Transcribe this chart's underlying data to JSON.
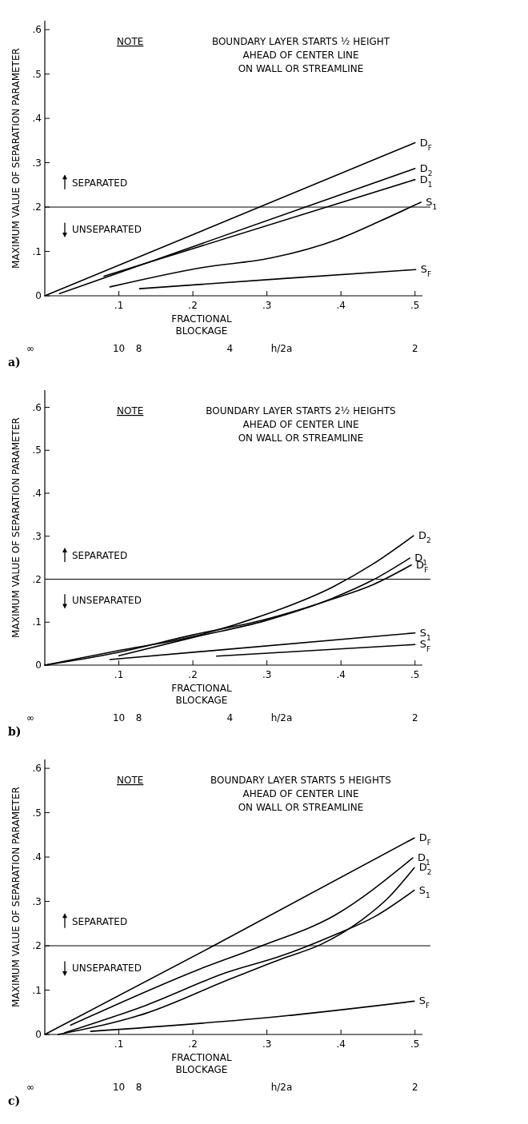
{
  "chart_data": [
    {
      "type": "line",
      "xlabel": "FRACTIONAL\nBLOCKAGE",
      "ylabel": "MAXIMUM VALUE OF SEPARATION PARAMETER",
      "x2label": "h/2a",
      "xlim": [
        0,
        0.51
      ],
      "ylim": [
        0,
        0.62
      ],
      "xticks": [
        {
          "value": 0.1,
          "label": ".1"
        },
        {
          "value": 0.2,
          "label": ".2"
        },
        {
          "value": 0.3,
          "label": ".3"
        },
        {
          "value": 0.4,
          "label": ".4"
        },
        {
          "value": 0.5,
          "label": ".5"
        }
      ],
      "yticks": [
        {
          "value": 0,
          "label": "0"
        },
        {
          "value": 0.1,
          "label": ".1"
        },
        {
          "value": 0.2,
          "label": ".2"
        },
        {
          "value": 0.3,
          "label": ".3"
        },
        {
          "value": 0.4,
          "label": ".4"
        },
        {
          "value": 0.5,
          "label": ".5"
        },
        {
          "value": 0.6,
          "label": ".6"
        }
      ],
      "grid": false,
      "marker": "none",
      "line_style": "solid",
      "ref_lines": [
        {
          "axis": "y",
          "value": 0.2
        }
      ],
      "annotations": [
        "NOTE",
        "BOUNDARY LAYER STARTS ½ HEIGHT\nAHEAD OF CENTER LINE\nON WALL OR STREAMLINE",
        "SEPARATED",
        "UNSEPARATED",
        "a)",
        "∞",
        "10",
        "8",
        "4",
        "2"
      ],
      "series": [
        {
          "name": "D$_{F}$",
          "color": "#000000",
          "x": [
            0,
            0.5
          ],
          "values": [
            0,
            0.345
          ]
        },
        {
          "name": "D$_{2}$",
          "color": "#000000",
          "x": [
            0.02,
            0.5
          ],
          "values": [
            0.005,
            0.287
          ]
        },
        {
          "name": "D$_{1}$",
          "color": "#000000",
          "x": [
            0.08,
            0.5
          ],
          "values": [
            0.044,
            0.262
          ]
        },
        {
          "name": "S$_{1}$",
          "color": "#000000",
          "x": [
            0.088,
            0.214,
            0.305,
            0.397,
            0.451,
            0.508
          ],
          "values": [
            0.02,
            0.064,
            0.085,
            0.128,
            0.167,
            0.211
          ]
        },
        {
          "name": "S$_{F}$",
          "color": "#000000",
          "x": [
            0.128,
            0.323,
            0.501
          ],
          "values": [
            0.016,
            0.039,
            0.059
          ]
        }
      ]
    },
    {
      "type": "line",
      "xlabel": "FRACTIONAL\nBLOCKAGE",
      "ylabel": "MAXIMUM VALUE OF SEPARATION PARAMETER",
      "x2label": "h/2a",
      "xlim": [
        0,
        0.51
      ],
      "ylim": [
        0,
        0.64
      ],
      "xticks": [
        {
          "value": 0.1,
          "label": ".1"
        },
        {
          "value": 0.2,
          "label": ".2"
        },
        {
          "value": 0.3,
          "label": ".3"
        },
        {
          "value": 0.4,
          "label": ".4"
        },
        {
          "value": 0.5,
          "label": ".5"
        }
      ],
      "yticks": [
        {
          "value": 0,
          "label": "0"
        },
        {
          "value": 0.1,
          "label": ".1"
        },
        {
          "value": 0.2,
          "label": ".2"
        },
        {
          "value": 0.3,
          "label": ".3"
        },
        {
          "value": 0.4,
          "label": ".4"
        },
        {
          "value": 0.5,
          "label": ".5"
        },
        {
          "value": 0.6,
          "label": ".6"
        }
      ],
      "grid": false,
      "marker": "none",
      "line_style": "solid",
      "ref_lines": [
        {
          "axis": "y",
          "value": 0.2
        }
      ],
      "annotations": [
        "NOTE",
        "BOUNDARY LAYER STARTS 2½ HEIGHTS\nAHEAD OF CENTER LINE\nON WALL OR STREAMLINE",
        "SEPARATED",
        "UNSEPARATED",
        "b)",
        "∞",
        "10",
        "8",
        "4",
        "2"
      ],
      "series": [
        {
          "name": "D$_{2}$",
          "color": "#000000",
          "x": [
            0,
            0.097,
            0.199,
            0.297,
            0.389,
            0.443,
            0.498
          ],
          "values": [
            0,
            0.033,
            0.066,
            0.117,
            0.182,
            0.235,
            0.301
          ]
        },
        {
          "name": "D$_{1}$",
          "color": "#000000",
          "x": [
            0.1,
            0.199,
            0.297,
            0.389,
            0.443,
            0.493
          ],
          "values": [
            0.022,
            0.064,
            0.103,
            0.156,
            0.198,
            0.249
          ]
        },
        {
          "name": "D$_{F}$",
          "color": "#000000",
          "x": [
            0,
            0.097,
            0.199,
            0.297,
            0.389,
            0.443,
            0.495
          ],
          "values": [
            0,
            0.029,
            0.07,
            0.106,
            0.154,
            0.187,
            0.233
          ]
        },
        {
          "name": "S$_{1}$",
          "color": "#000000",
          "x": [
            0.088,
            0.5
          ],
          "values": [
            0.013,
            0.075
          ]
        },
        {
          "name": "S$_{F}$",
          "color": "#000000",
          "x": [
            0.232,
            0.5
          ],
          "values": [
            0.021,
            0.048
          ]
        }
      ]
    },
    {
      "type": "line",
      "xlabel": "FRACTIONAL\nBLOCKAGE",
      "ylabel": "MAXIMUM VALUE OF SEPARATION PARAMETER",
      "x2label": "h/2a",
      "xlim": [
        0,
        0.51
      ],
      "ylim": [
        0,
        0.62
      ],
      "xticks": [
        {
          "value": 0.1,
          "label": ".1"
        },
        {
          "value": 0.2,
          "label": ".2"
        },
        {
          "value": 0.3,
          "label": ".3"
        },
        {
          "value": 0.4,
          "label": ".4"
        },
        {
          "value": 0.5,
          "label": ".5"
        }
      ],
      "yticks": [
        {
          "value": 0,
          "label": "0"
        },
        {
          "value": 0.1,
          "label": ".1"
        },
        {
          "value": 0.2,
          "label": ".2"
        },
        {
          "value": 0.3,
          "label": ".3"
        },
        {
          "value": 0.4,
          "label": ".4"
        },
        {
          "value": 0.5,
          "label": ".5"
        },
        {
          "value": 0.6,
          "label": ".6"
        }
      ],
      "grid": false,
      "marker": "none",
      "line_style": "solid",
      "ref_lines": [
        {
          "axis": "y",
          "value": 0.2
        }
      ],
      "annotations": [
        "NOTE",
        "BOUNDARY LAYER STARTS 5 HEIGHTS\nAHEAD OF CENTER LINE\nON WALL OR STREAMLINE",
        "SEPARATED",
        "UNSEPARATED",
        "c)",
        "∞",
        "10",
        "8",
        "2"
      ],
      "series": [
        {
          "name": "D$_{F}$",
          "color": "#000000",
          "x": [
            0,
            0.228,
            0.499
          ],
          "values": [
            0,
            0.2,
            0.443
          ]
        },
        {
          "name": "D$_{1}$",
          "color": "#000000",
          "x": [
            0.035,
            0.21,
            0.29,
            0.392,
            0.497
          ],
          "values": [
            0.021,
            0.148,
            0.198,
            0.269,
            0.398
          ]
        },
        {
          "name": "D$_{2}$",
          "color": "#000000",
          "x": [
            0.018,
            0.137,
            0.246,
            0.319,
            0.373,
            0.428,
            0.465,
            0.499
          ],
          "values": [
            0,
            0.048,
            0.122,
            0.17,
            0.203,
            0.258,
            0.31,
            0.376
          ]
        },
        {
          "name": "S$_{1}$",
          "color": "#000000",
          "x": [
            0.027,
            0.137,
            0.246,
            0.319,
            0.392,
            0.446,
            0.499
          ],
          "values": [
            0.004,
            0.066,
            0.14,
            0.177,
            0.225,
            0.266,
            0.325
          ]
        },
        {
          "name": "S$_{F}$",
          "color": "#000000",
          "x": [
            0.062,
            0.319,
            0.499
          ],
          "values": [
            0.007,
            0.041,
            0.075
          ]
        }
      ]
    }
  ]
}
